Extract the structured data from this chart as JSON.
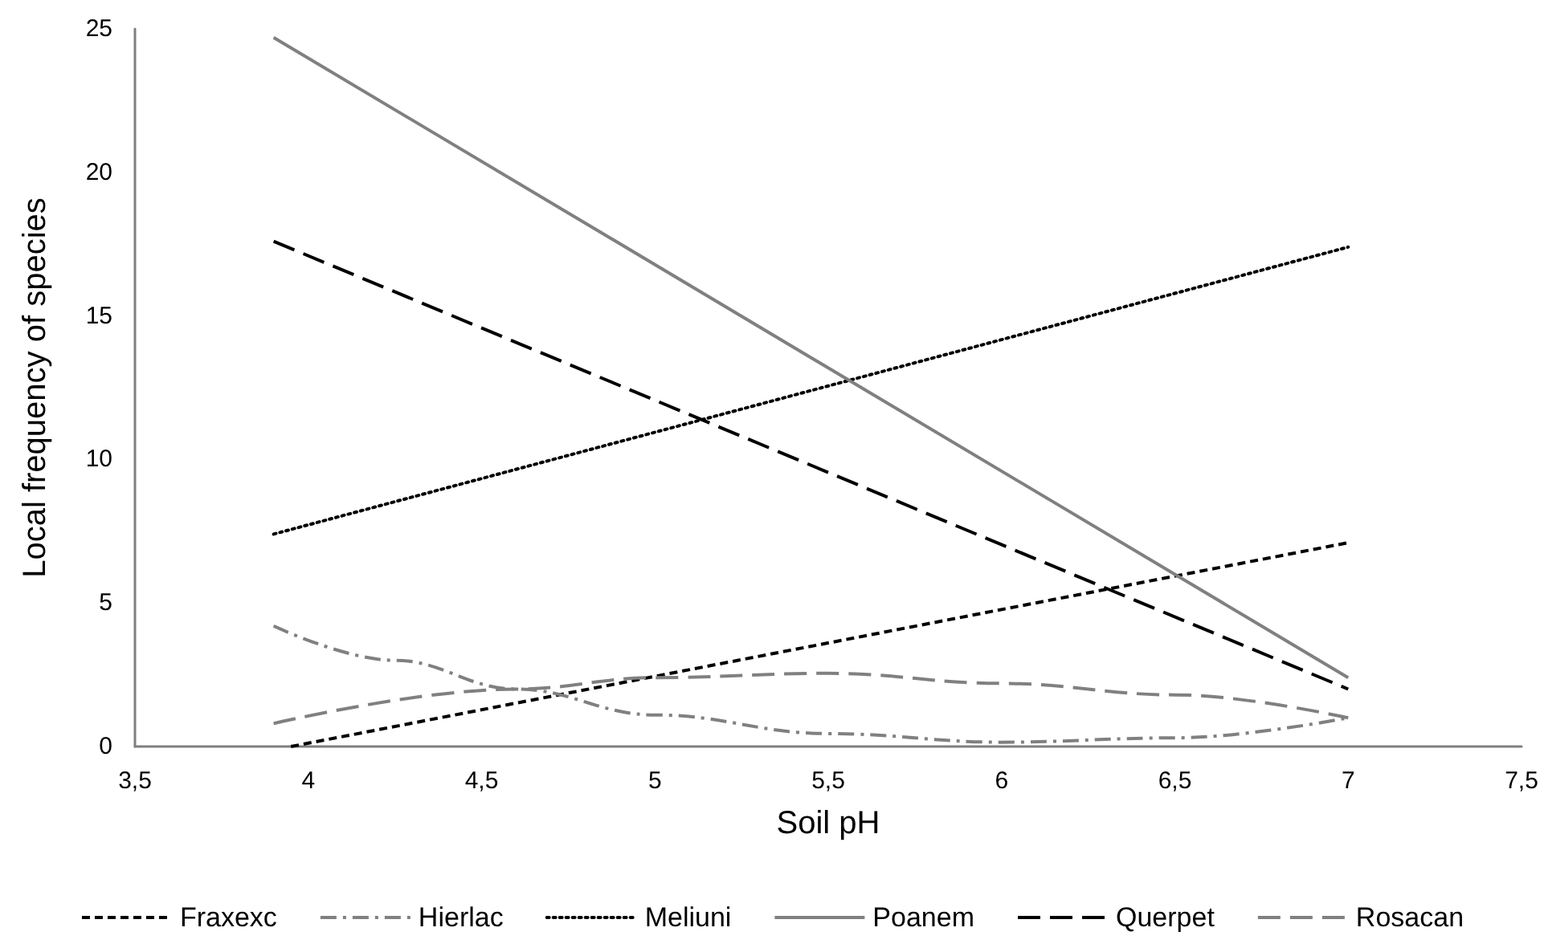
{
  "chart_data": {
    "type": "line",
    "xlabel": "Soil pH",
    "ylabel": "Local frequency of species",
    "xlim": [
      3.5,
      7.5
    ],
    "xticks": [
      {
        "value": 3.5,
        "label": "3,5"
      },
      4,
      {
        "value": 4.5,
        "label": "4,5"
      },
      5,
      {
        "value": 5.5,
        "label": "5,5"
      },
      6,
      {
        "value": 6.5,
        "label": "6,5"
      },
      7,
      {
        "value": 7.5,
        "label": "7,5"
      }
    ],
    "ylim": [
      0,
      25
    ],
    "yticks": [
      0,
      5,
      10,
      15,
      20,
      25
    ],
    "grid": false,
    "legend": "bottom",
    "marker": "none",
    "series": [
      {
        "name": "Fraxexc",
        "color": "#000000",
        "line_style": "dashed",
        "x": [
          3.95,
          7
        ],
        "values": [
          0,
          7.1
        ]
      },
      {
        "name": "Hierlac",
        "color": "#808080",
        "line_style": "dashdot",
        "x": [
          3.9,
          4.25,
          4.6,
          5.0,
          5.5,
          6.0,
          6.5,
          7.0
        ],
        "values": [
          4.2,
          3.0,
          2.0,
          1.1,
          0.45,
          0.15,
          0.3,
          1.0
        ]
      },
      {
        "name": "Meliuni",
        "color": "#000000",
        "line_style": "dotted",
        "x": [
          3.9,
          7
        ],
        "values": [
          7.4,
          17.4
        ]
      },
      {
        "name": "Poanem",
        "color": "#808080",
        "line_style": "solid",
        "x": [
          3.9,
          7
        ],
        "values": [
          24.7,
          2.4
        ]
      },
      {
        "name": "Querpet",
        "color": "#000000",
        "line_style": "longdash",
        "x": [
          3.9,
          7
        ],
        "values": [
          17.6,
          2.0
        ]
      },
      {
        "name": "Rosacan",
        "color": "#808080",
        "line_style": "longdash",
        "x": [
          3.9,
          4.6,
          5.0,
          5.5,
          6.0,
          6.5,
          7.0
        ],
        "values": [
          0.8,
          2.0,
          2.4,
          2.55,
          2.2,
          1.8,
          1.0
        ]
      }
    ]
  }
}
